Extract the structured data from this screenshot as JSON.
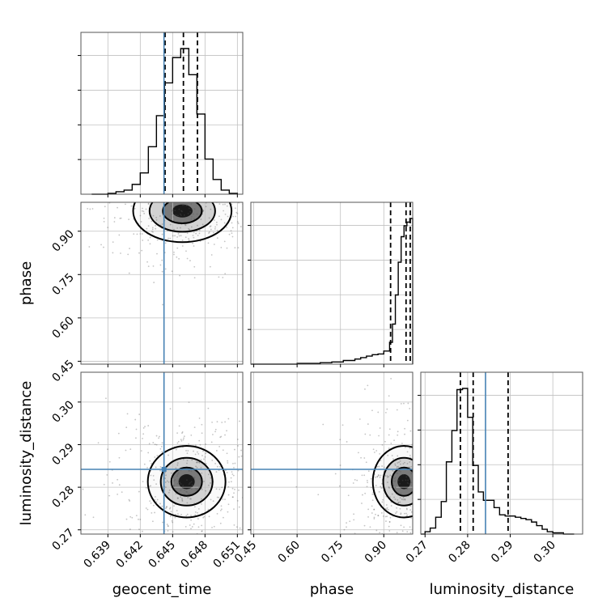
{
  "chart_data": {
    "type": "corner",
    "parameters": [
      "geocent_time",
      "phase",
      "luminosity_distance"
    ],
    "axis_labels": {
      "geocent_time": "geocent_time",
      "phase": "phase",
      "luminosity_distance": "luminosity_distance"
    },
    "ranges": {
      "geocent_time": [
        0.6365,
        0.6515
      ],
      "phase": [
        0.44,
        1.0
      ],
      "luminosity_distance": [
        0.269,
        0.307
      ]
    },
    "ticks": {
      "geocent_time": [
        "0.639",
        "0.642",
        "0.645",
        "0.648",
        "0.651"
      ],
      "phase": [
        "0.45",
        "0.60",
        "0.75",
        "0.90"
      ],
      "luminosity_distance": [
        "0.27",
        "0.28",
        "0.29",
        "0.30"
      ]
    },
    "truths": {
      "geocent_time": 0.6442,
      "luminosity_distance": 0.2842
    },
    "quantiles": {
      "geocent_time": [
        0.6443,
        0.646,
        0.6473
      ],
      "phase": [
        0.9235,
        0.977,
        0.9915
      ],
      "luminosity_distance": [
        0.2783,
        0.2813,
        0.2895
      ]
    },
    "histograms": {
      "geocent_time": {
        "edges": [
          0.6375,
          0.63825,
          0.639,
          0.63975,
          0.6405,
          0.64125,
          0.642,
          0.64275,
          0.6435,
          0.64425,
          0.645,
          0.64575,
          0.6465,
          0.64725,
          0.648,
          0.64875,
          0.6495,
          0.65025,
          0.651
        ],
        "counts": [
          0,
          0,
          1,
          3,
          5,
          12,
          26,
          58,
          96,
          136,
          167,
          178,
          146,
          98,
          43,
          18,
          5,
          1
        ]
      },
      "phase": {
        "edges": [
          0.44,
          0.6,
          0.64,
          0.68,
          0.72,
          0.76,
          0.8,
          0.82,
          0.84,
          0.86,
          0.88,
          0.9,
          0.92,
          0.93,
          0.94,
          0.95,
          0.96,
          0.97,
          0.98,
          0.99,
          1.0
        ],
        "counts": [
          0,
          1,
          1,
          2,
          3,
          5,
          7,
          9,
          11,
          13,
          14,
          18,
          30,
          55,
          95,
          140,
          175,
          190,
          195,
          200
        ]
      },
      "luminosity_distance": {
        "edges": [
          0.269,
          0.27,
          0.2712,
          0.2725,
          0.2738,
          0.275,
          0.2763,
          0.2775,
          0.2788,
          0.28,
          0.2812,
          0.2825,
          0.2837,
          0.285,
          0.2862,
          0.2875,
          0.2888,
          0.29,
          0.2912,
          0.2925,
          0.2937,
          0.295,
          0.2962,
          0.2975,
          0.2987,
          0.3,
          0.3012,
          0.3025,
          0.3037,
          0.305
        ],
        "counts": [
          0,
          2,
          5,
          14,
          27,
          60,
          86,
          120,
          121,
          97,
          57,
          35,
          28,
          28,
          22,
          16,
          15,
          15,
          14,
          13,
          12,
          10,
          7,
          4,
          2,
          1,
          1,
          0,
          0
        ]
      }
    },
    "pairs": [
      {
        "x": "geocent_time",
        "y": "phase",
        "peak": [
          0.6459,
          0.97
        ],
        "spread": [
          0.0019,
          0.045
        ]
      },
      {
        "x": "geocent_time",
        "y": "luminosity_distance",
        "peak": [
          0.6463,
          0.2813
        ],
        "spread": [
          0.0015,
          0.0035
        ]
      },
      {
        "x": "phase",
        "y": "luminosity_distance",
        "peak": [
          0.97,
          0.2813
        ],
        "spread": [
          0.045,
          0.0035
        ]
      }
    ],
    "grid": true,
    "colors": {
      "truth": "#4682b4",
      "hist": "#000000",
      "points": "#555555",
      "grid": "#c0c0c0"
    }
  }
}
